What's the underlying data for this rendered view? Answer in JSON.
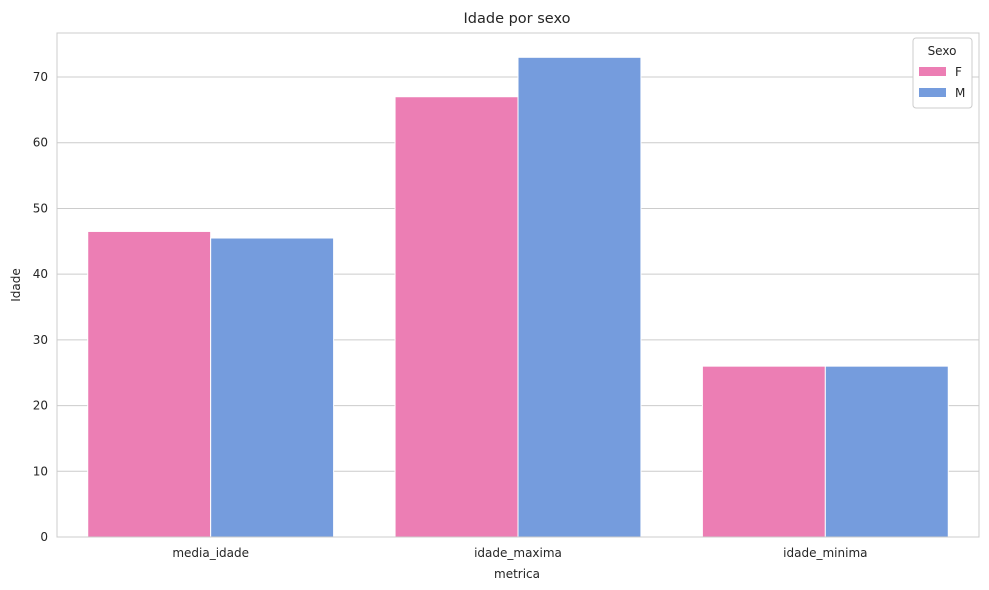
{
  "chart_data": {
    "type": "bar",
    "title": "Idade por sexo",
    "xlabel": "metrica",
    "ylabel": "Idade",
    "categories": [
      "media_idade",
      "idade_maxima",
      "idade_minima"
    ],
    "series": [
      {
        "name": "F",
        "color": "#ec7eb4",
        "values": [
          46.5,
          67,
          26
        ]
      },
      {
        "name": "M",
        "color": "#759cdd",
        "values": [
          45.5,
          73,
          26
        ]
      }
    ],
    "ylim": [
      0,
      76.7
    ],
    "yticks": [
      0,
      10,
      20,
      30,
      40,
      50,
      60,
      70
    ],
    "grid": "horizontal",
    "legend": {
      "title": "Sexo",
      "position": "top-right"
    }
  }
}
